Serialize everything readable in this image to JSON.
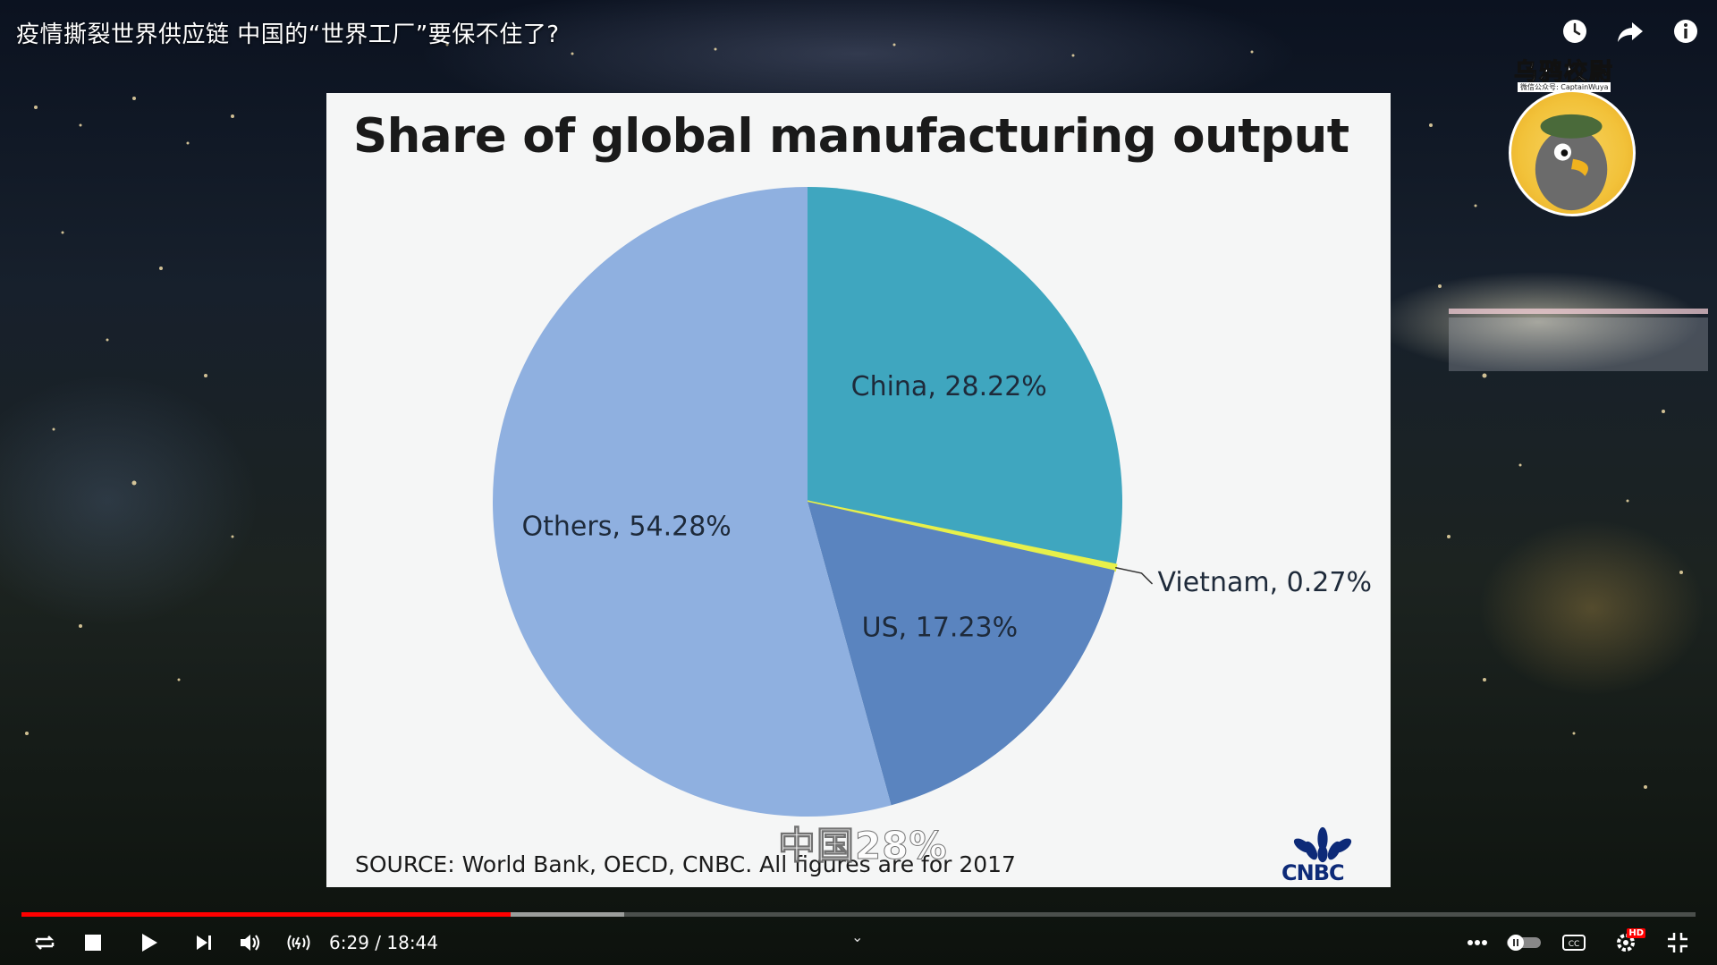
{
  "video": {
    "title": "疫情撕裂世界供应链 中国的“世界工厂”要保不住了?",
    "subtitle": "中国28%",
    "time_display": "6:29 / 18:44",
    "progress_played_fraction": 0.2924,
    "progress_loaded_fraction": 0.36
  },
  "channel": {
    "name": "乌鸦校尉",
    "sub": "微信公众号: CaptainWuya"
  },
  "top_icons": [
    "clock-icon",
    "share-icon",
    "info-icon"
  ],
  "slide": {
    "title": "Share of global manufacturing output",
    "source": "SOURCE: World Bank, OECD, CNBC. All figures are for 2017",
    "logo_text": "CNBC"
  },
  "chart_data": {
    "type": "pie",
    "title": "Share of global manufacturing output",
    "slices": [
      {
        "name": "China",
        "value": 28.22,
        "label": "China, 28.22%",
        "color": "#3fa6bf"
      },
      {
        "name": "Vietnam",
        "value": 0.27,
        "label": "Vietnam, 0.27%",
        "color": "#e8f04a"
      },
      {
        "name": "US",
        "value": 17.23,
        "label": "US, 17.23%",
        "color": "#5a84bf"
      },
      {
        "name": "Others",
        "value": 54.28,
        "label": "Others, 54.28%",
        "color": "#8fb0e0"
      }
    ],
    "start_angle_deg": 0,
    "direction": "clockwise"
  },
  "controls": {
    "buttons": [
      "loop-icon",
      "stop-icon",
      "play-icon",
      "next-icon",
      "volume-icon",
      "live-icon",
      "more-icon",
      "autoplay-toggle",
      "captions-icon",
      "settings-icon",
      "exit-fullscreen-icon"
    ],
    "quality_badge": "HD"
  }
}
